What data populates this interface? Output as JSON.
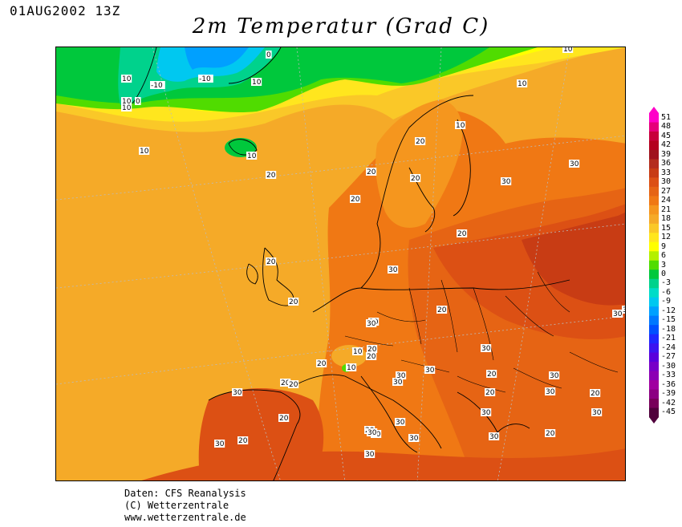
{
  "header": {
    "datetime": "01AUG2002 13Z",
    "title": "2m Temperatur (Grad C)"
  },
  "credits": {
    "line1": "Daten: CFS Reanalysis",
    "line2": "(C) Wetterzentrale",
    "line3": "www.wetterzentrale.de"
  },
  "legend": {
    "unit": "Grad C",
    "levels": [
      {
        "value": "51",
        "color": "#ff00c8"
      },
      {
        "value": "48",
        "color": "#e6007a"
      },
      {
        "value": "45",
        "color": "#c8003c"
      },
      {
        "value": "42",
        "color": "#b4001e"
      },
      {
        "value": "39",
        "color": "#a0141e"
      },
      {
        "value": "36",
        "color": "#b42d1e"
      },
      {
        "value": "33",
        "color": "#c83c14"
      },
      {
        "value": "30",
        "color": "#dc5014"
      },
      {
        "value": "27",
        "color": "#e66414"
      },
      {
        "value": "24",
        "color": "#f07814"
      },
      {
        "value": "21",
        "color": "#f5961e"
      },
      {
        "value": "18",
        "color": "#f5aa28"
      },
      {
        "value": "15",
        "color": "#fac828"
      },
      {
        "value": "12",
        "color": "#ffe61e"
      },
      {
        "value": "9",
        "color": "#ffff00"
      },
      {
        "value": "6",
        "color": "#b4f000"
      },
      {
        "value": "3",
        "color": "#50dc00"
      },
      {
        "value": "0",
        "color": "#00c83c"
      },
      {
        "value": "-3",
        "color": "#00d28c"
      },
      {
        "value": "-6",
        "color": "#00dcc8"
      },
      {
        "value": "-9",
        "color": "#00c8f0"
      },
      {
        "value": "-12",
        "color": "#00a0ff"
      },
      {
        "value": "-15",
        "color": "#0078ff"
      },
      {
        "value": "-18",
        "color": "#0050ff"
      },
      {
        "value": "-21",
        "color": "#1e28ff"
      },
      {
        "value": "-24",
        "color": "#3c14f0"
      },
      {
        "value": "-27",
        "color": "#5a00dc"
      },
      {
        "value": "-30",
        "color": "#7800c8"
      },
      {
        "value": "-33",
        "color": "#8c00b4"
      },
      {
        "value": "-36",
        "color": "#a000a0"
      },
      {
        "value": "-39",
        "color": "#8c0082"
      },
      {
        "value": "-42",
        "color": "#78005a"
      },
      {
        "value": "-45",
        "color": "#50003c"
      }
    ]
  },
  "map": {
    "region": "Europe",
    "contour_labels": [
      "10",
      "-10",
      "-10",
      "0",
      "10",
      "10",
      "10",
      "0",
      "10",
      "10",
      "10",
      "10",
      "10",
      "20",
      "20",
      "20",
      "20",
      "20",
      "20",
      "30",
      "30",
      "30",
      "20",
      "20",
      "20",
      "20",
      "30",
      "20",
      "20",
      "10",
      "10",
      "20",
      "20",
      "20",
      "30",
      "30",
      "30",
      "20",
      "30",
      "20",
      "20",
      "30",
      "30",
      "30",
      "30",
      "30",
      "30",
      "20",
      "30",
      "20",
      "20",
      "30",
      "30",
      "30",
      "30",
      "30",
      "20",
      "30",
      "30"
    ]
  }
}
